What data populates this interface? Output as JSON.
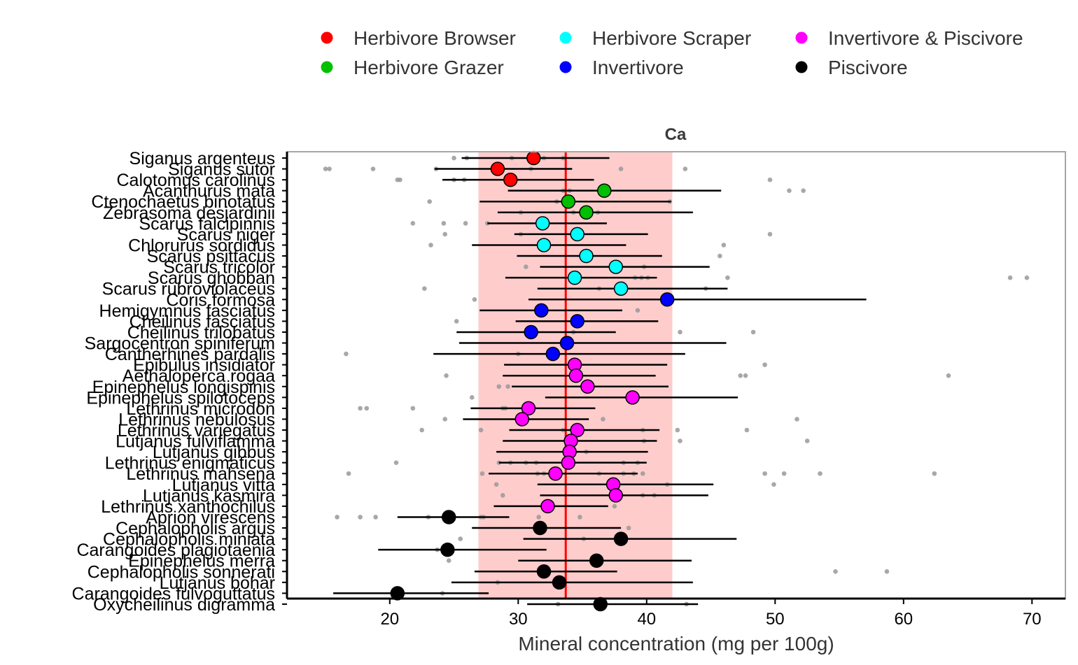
{
  "chart_data": {
    "type": "scatter",
    "title": "Ca",
    "xlabel": "Mineral concentration (mg per 100g)",
    "ylabel": "",
    "xlim": [
      12,
      72.6
    ],
    "xticks": [
      20,
      30,
      40,
      50,
      60,
      70
    ],
    "grid": false,
    "legend_position": "top",
    "overall_mean": 33.7,
    "band": [
      26.9,
      42.0
    ],
    "legend": [
      {
        "name": "Herbivore Browser",
        "color": "#ff0000"
      },
      {
        "name": "Herbivore Grazer",
        "color": "#00c000"
      },
      {
        "name": "Herbivore Scraper",
        "color": "#00ffff"
      },
      {
        "name": "Invertivore",
        "color": "#0000ff"
      },
      {
        "name": "Invertivore & Piscivore",
        "color": "#ff00ff"
      },
      {
        "name": "Piscivore",
        "color": "#000000"
      }
    ],
    "species": [
      {
        "name": "Siganus argenteus",
        "group": "Herbivore Browser",
        "mean": 31.2,
        "low": 25.6,
        "high": 37.1,
        "raw": [
          25.0,
          26.0,
          29.5,
          32.0,
          33.5
        ]
      },
      {
        "name": "Siganus sutor",
        "group": "Herbivore Browser",
        "mean": 28.4,
        "low": 23.5,
        "high": 34.2,
        "raw": [
          15.0,
          15.3,
          18.7,
          23.6,
          28.8,
          31.0,
          38.0,
          43.0
        ]
      },
      {
        "name": "Calotomus carolinus",
        "group": "Herbivore Browser",
        "mean": 29.4,
        "low": 24.1,
        "high": 35.9,
        "raw": [
          20.6,
          20.8,
          25.0,
          25.8,
          29.8,
          49.6
        ]
      },
      {
        "name": "Acanthurus mata",
        "group": "Herbivore Grazer",
        "mean": 36.7,
        "low": 29.2,
        "high": 45.8,
        "raw": [
          33.5,
          34.0,
          51.1,
          52.2
        ]
      },
      {
        "name": "Ctenochaetus binotatus",
        "group": "Herbivore Grazer",
        "mean": 33.9,
        "low": 27.0,
        "high": 41.9,
        "raw": [
          23.1,
          33.0,
          41.8
        ]
      },
      {
        "name": "Zebrasoma desjardinii",
        "group": "Herbivore Grazer",
        "mean": 35.3,
        "low": 28.4,
        "high": 43.6,
        "raw": [
          30.2,
          34.3,
          35.0,
          36.2
        ]
      },
      {
        "name": "Scarus falcipinnis",
        "group": "Herbivore Scraper",
        "mean": 31.9,
        "low": 27.6,
        "high": 36.9,
        "raw": [
          21.8,
          24.2,
          25.9,
          27.6
        ]
      },
      {
        "name": "Scarus niger",
        "group": "Herbivore Scraper",
        "mean": 34.6,
        "low": 29.7,
        "high": 40.1,
        "raw": [
          24.3,
          30.2,
          49.6
        ]
      },
      {
        "name": "Chlorurus sordidus",
        "group": "Herbivore Scraper",
        "mean": 32.0,
        "low": 26.4,
        "high": 38.4,
        "raw": [
          23.2,
          46.0
        ]
      },
      {
        "name": "Scarus psittacus",
        "group": "Herbivore Scraper",
        "mean": 35.3,
        "low": 29.9,
        "high": 41.2,
        "raw": [
          45.7
        ]
      },
      {
        "name": "Scarus tricolor",
        "group": "Herbivore Scraper",
        "mean": 37.6,
        "low": 31.7,
        "high": 44.9,
        "raw": [
          30.6,
          39.8
        ]
      },
      {
        "name": "Scarus ghobban",
        "group": "Herbivore Scraper",
        "mean": 34.4,
        "low": 29.0,
        "high": 40.8,
        "raw": [
          39.1,
          39.6,
          40.1,
          46.3,
          68.3,
          69.6
        ]
      },
      {
        "name": "Scarus rubroviolaceus",
        "group": "Herbivore Scraper",
        "mean": 38.0,
        "low": 31.5,
        "high": 46.3,
        "raw": [
          22.7,
          36.3,
          44.6
        ]
      },
      {
        "name": "Coris formosa",
        "group": "Invertivore",
        "mean": 41.6,
        "low": 30.8,
        "high": 57.1,
        "raw": [
          26.6
        ]
      },
      {
        "name": "Hemigymnus fasciatus",
        "group": "Invertivore",
        "mean": 31.8,
        "low": 27.0,
        "high": 38.1,
        "raw": [
          39.3
        ]
      },
      {
        "name": "Cheilinus fasciatus",
        "group": "Invertivore",
        "mean": 34.6,
        "low": 29.8,
        "high": 40.9,
        "raw": [
          25.2
        ]
      },
      {
        "name": "Cheilinus trilobatus",
        "group": "Invertivore",
        "mean": 31.0,
        "low": 25.2,
        "high": 37.6,
        "raw": [
          34.3,
          42.6,
          48.3
        ]
      },
      {
        "name": "Sargocentron spiniferum",
        "group": "Invertivore",
        "mean": 33.8,
        "low": 25.4,
        "high": 46.2,
        "raw": []
      },
      {
        "name": "Cantherhines pardalis",
        "group": "Invertivore",
        "mean": 32.7,
        "low": 23.4,
        "high": 43.0,
        "raw": [
          16.6,
          30.0
        ]
      },
      {
        "name": "Epibulus insidiator",
        "group": "Invertivore & Piscivore",
        "mean": 34.4,
        "low": 28.9,
        "high": 41.6,
        "raw": [
          49.2
        ]
      },
      {
        "name": "Aethaloperca rogaa",
        "group": "Invertivore & Piscivore",
        "mean": 34.5,
        "low": 28.8,
        "high": 40.7,
        "raw": [
          24.4,
          47.3,
          47.7,
          63.5
        ]
      },
      {
        "name": "Epinephelus longispinis",
        "group": "Invertivore & Piscivore",
        "mean": 35.4,
        "low": 29.5,
        "high": 41.7,
        "raw": [
          28.5,
          29.2
        ]
      },
      {
        "name": "Epinephelus spilotoceps",
        "group": "Invertivore & Piscivore",
        "mean": 38.9,
        "low": 32.1,
        "high": 47.1,
        "raw": [
          26.4
        ]
      },
      {
        "name": "Lethrinus microdon",
        "group": "Invertivore & Piscivore",
        "mean": 30.8,
        "low": 26.3,
        "high": 36.0,
        "raw": [
          17.7,
          18.2,
          21.8,
          28.8,
          29.0
        ]
      },
      {
        "name": "Lethrinus nebulosus",
        "group": "Invertivore & Piscivore",
        "mean": 30.3,
        "low": 25.7,
        "high": 35.5,
        "raw": [
          24.3,
          36.6,
          51.7
        ]
      },
      {
        "name": "Lethrinus variegatus",
        "group": "Invertivore & Piscivore",
        "mean": 34.6,
        "low": 29.3,
        "high": 41.0,
        "raw": [
          22.5,
          27.1,
          33.5,
          39.7,
          42.4,
          47.8
        ]
      },
      {
        "name": "Lutjanus fulviflamma",
        "group": "Invertivore & Piscivore",
        "mean": 34.1,
        "low": 28.8,
        "high": 40.8,
        "raw": [
          39.8,
          42.6,
          52.5
        ]
      },
      {
        "name": "Lutjanus gibbus",
        "group": "Invertivore & Piscivore",
        "mean": 34.0,
        "low": 28.3,
        "high": 40.1,
        "raw": [
          35.3
        ]
      },
      {
        "name": "Lethrinus enigmaticus",
        "group": "Invertivore & Piscivore",
        "mean": 33.9,
        "low": 28.5,
        "high": 40.0,
        "raw": [
          20.5,
          28.5,
          29.4,
          30.6,
          31.4,
          33.6,
          38.2,
          39.3
        ]
      },
      {
        "name": "Lethrinus mahsena",
        "group": "Invertivore & Piscivore",
        "mean": 32.9,
        "low": 27.7,
        "high": 39.3,
        "raw": [
          16.8,
          27.2,
          31.5,
          32.0,
          36.3,
          38.2,
          39.0,
          39.7,
          49.2,
          50.7,
          53.5,
          62.4
        ]
      },
      {
        "name": "Lutjanus vitta",
        "group": "Invertivore & Piscivore",
        "mean": 37.4,
        "low": 31.5,
        "high": 45.2,
        "raw": [
          28.3,
          41.6,
          49.9
        ]
      },
      {
        "name": "Lutjanus kasmira",
        "group": "Invertivore & Piscivore",
        "mean": 37.6,
        "low": 31.7,
        "high": 44.8,
        "raw": [
          28.8,
          39.7,
          40.6
        ]
      },
      {
        "name": "Lethrinus xanthochilus",
        "group": "Invertivore & Piscivore",
        "mean": 32.3,
        "low": 28.1,
        "high": 37.0,
        "raw": [
          37.5
        ]
      },
      {
        "name": "Aprion virescens",
        "group": "Piscivore",
        "mean": 24.6,
        "low": 20.6,
        "high": 29.3,
        "raw": [
          15.9,
          17.7,
          18.9,
          23.0,
          24.2,
          27.1,
          27.3,
          31.6,
          34.8
        ]
      },
      {
        "name": "Cephalopholis argus",
        "group": "Piscivore",
        "mean": 31.7,
        "low": 26.4,
        "high": 38.0,
        "raw": [
          38.6
        ]
      },
      {
        "name": "Cephalopholis miniata",
        "group": "Piscivore",
        "mean": 38.0,
        "low": 30.4,
        "high": 47.0,
        "raw": [
          25.5,
          35.1
        ]
      },
      {
        "name": "Carangoides plagiotaenia",
        "group": "Piscivore",
        "mean": 24.5,
        "low": 19.1,
        "high": 32.2,
        "raw": [
          23.7
        ]
      },
      {
        "name": "Epinephelus merra",
        "group": "Piscivore",
        "mean": 36.1,
        "low": 30.0,
        "high": 43.5,
        "raw": [
          24.6
        ]
      },
      {
        "name": "Cephalopholis sonnerati",
        "group": "Piscivore",
        "mean": 32.0,
        "low": 26.6,
        "high": 37.7,
        "raw": [
          54.7,
          58.7
        ]
      },
      {
        "name": "Lutjanus bohar",
        "group": "Piscivore",
        "mean": 33.2,
        "low": 24.8,
        "high": 43.6,
        "raw": [
          28.4
        ]
      },
      {
        "name": "Carangoides fulvoguttatus",
        "group": "Piscivore",
        "mean": 20.6,
        "low": 15.6,
        "high": 27.7,
        "raw": [
          24.1
        ]
      },
      {
        "name": "Oxycheilinus digramma",
        "group": "Piscivore",
        "mean": 36.4,
        "low": 30.7,
        "high": 44.0,
        "raw": [
          33.1,
          43.1
        ]
      }
    ]
  }
}
